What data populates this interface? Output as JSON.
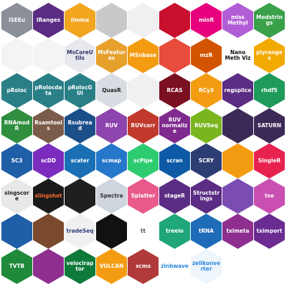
{
  "stickers": [
    {
      "label": "iSEEu",
      "bg": "#8a8f98",
      "fg": "#ffffff"
    },
    {
      "label": "IRanges",
      "bg": "#5b2c83",
      "fg": "#ffffff"
    },
    {
      "label": "limma",
      "bg": "#f2a51e",
      "fg": "#ffffff"
    },
    {
      "label": "",
      "bg": "#c9c9c9",
      "fg": "#000000"
    },
    {
      "label": "",
      "bg": "#f0f0f0",
      "fg": "#333333"
    },
    {
      "label": "",
      "bg": "#c8102e",
      "fg": "#ffffff"
    },
    {
      "label": "minfi",
      "bg": "#e6007e",
      "fg": "#ffffff"
    },
    {
      "label": "miss Methyl",
      "bg": "#b15dd6",
      "fg": "#ffffff"
    },
    {
      "label": "Modstrings",
      "bg": "#3aa14a",
      "fg": "#ffffff"
    },
    {
      "label": "",
      "bg": "#f4f4f4",
      "fg": "#555555"
    },
    {
      "label": "",
      "bg": "#f4f4f4",
      "fg": "#555555"
    },
    {
      "label": "MsCoreUtils",
      "bg": "#e8e8ef",
      "fg": "#333366"
    },
    {
      "label": "MsFeatures",
      "bg": "#e7a02c",
      "fg": "#ffffff"
    },
    {
      "label": "MSnbase",
      "bg": "#f39c12",
      "fg": "#ffffff"
    },
    {
      "label": "",
      "bg": "#e74c3c",
      "fg": "#ffffff"
    },
    {
      "label": "mzR",
      "bg": "#d35400",
      "fg": "#ffffff"
    },
    {
      "label": "Nano Meth Viz",
      "bg": "#ffffff",
      "fg": "#111111"
    },
    {
      "label": "plyranges",
      "bg": "#f2a900",
      "fg": "#ffffff"
    },
    {
      "label": "pRoloc",
      "bg": "#2a7f87",
      "fg": "#ffffff"
    },
    {
      "label": "pRolocdata",
      "bg": "#2a7f87",
      "fg": "#ffffff"
    },
    {
      "label": "pRolocGUI",
      "bg": "#2a7f87",
      "fg": "#ffffff"
    },
    {
      "label": "QuasR",
      "bg": "#d9dde3",
      "fg": "#222222"
    },
    {
      "label": "",
      "bg": "#f0f0f0",
      "fg": "#555555"
    },
    {
      "label": "RCAS",
      "bg": "#7a1020",
      "fg": "#ffffff"
    },
    {
      "label": "RCy3",
      "bg": "#f39c12",
      "fg": "#ffffff"
    },
    {
      "label": "regsplice",
      "bg": "#5b2c83",
      "fg": "#ffffff"
    },
    {
      "label": "rhdf5",
      "bg": "#1e9b5a",
      "fg": "#ffffff"
    },
    {
      "label": "RNAmodR",
      "bg": "#2f8f3f",
      "fg": "#ffffff"
    },
    {
      "label": "Rsamtools",
      "bg": "#7b5b4a",
      "fg": "#ffffff"
    },
    {
      "label": "Rsubread",
      "bg": "#1b4f8a",
      "fg": "#ffffff"
    },
    {
      "label": "RUV",
      "bg": "#8e44ad",
      "fg": "#ffffff"
    },
    {
      "label": "RUVcorr",
      "bg": "#c0392b",
      "fg": "#ffffff"
    },
    {
      "label": "RUV normalize",
      "bg": "#7f2a8f",
      "fg": "#ffffff"
    },
    {
      "label": "RUVSeq",
      "bg": "#7ab51d",
      "fg": "#ffffff"
    },
    {
      "label": "",
      "bg": "#3b2a57",
      "fg": "#ffffff"
    },
    {
      "label": "SATURN",
      "bg": "#3b2a57",
      "fg": "#ffffff"
    },
    {
      "label": "SC3",
      "bg": "#1f5fa8",
      "fg": "#ffffff"
    },
    {
      "label": "scDD",
      "bg": "#7b2cbf",
      "fg": "#ffffff"
    },
    {
      "label": "scater",
      "bg": "#1b6fb5",
      "fg": "#ffffff"
    },
    {
      "label": "scmap",
      "bg": "#2577c9",
      "fg": "#ffffff"
    },
    {
      "label": "scPipe",
      "bg": "#2ecc71",
      "fg": "#ffffff"
    },
    {
      "label": "scran",
      "bg": "#0e5aa7",
      "fg": "#ffffff"
    },
    {
      "label": "SCRY",
      "bg": "#2c3e73",
      "fg": "#ffffff"
    },
    {
      "label": "",
      "bg": "#f39c12",
      "fg": "#ffffff"
    },
    {
      "label": "SingleR",
      "bg": "#e8224f",
      "fg": "#ffffff"
    },
    {
      "label": "singscore",
      "bg": "#e8e8e8",
      "fg": "#222222"
    },
    {
      "label": "slingshot",
      "bg": "#1a1a1a",
      "fg": "#ff6b2d"
    },
    {
      "label": "",
      "bg": "#1f1f1f",
      "fg": "#ffffff"
    },
    {
      "label": "Spectra",
      "bg": "#cfd5dc",
      "fg": "#333333"
    },
    {
      "label": "Splatter",
      "bg": "#e85a8c",
      "fg": "#ffffff"
    },
    {
      "label": "stageR",
      "bg": "#5b2c83",
      "fg": "#ffffff"
    },
    {
      "label": "Structstrings",
      "bg": "#5b2c83",
      "fg": "#ffffff"
    },
    {
      "label": "",
      "bg": "#7b4db3",
      "fg": "#ffffff"
    },
    {
      "label": "tse",
      "bg": "#c94fb2",
      "fg": "#ffffff"
    },
    {
      "label": "",
      "bg": "#1f5fa8",
      "fg": "#ffffff"
    },
    {
      "label": "",
      "bg": "#7b4a2e",
      "fg": "#ffffff"
    },
    {
      "label": "tradeSeq",
      "bg": "#f0f0f0",
      "fg": "#2c3e73"
    },
    {
      "label": "",
      "bg": "#111111",
      "fg": "#ffffff"
    },
    {
      "label": "tt",
      "bg": "#ffffff",
      "fg": "#555555"
    },
    {
      "label": "treeio",
      "bg": "#1fa67a",
      "fg": "#ffffff"
    },
    {
      "label": "tRNA",
      "bg": "#1e6bb8",
      "fg": "#ffffff"
    },
    {
      "label": "tximeta",
      "bg": "#8e2f8f",
      "fg": "#ffffff"
    },
    {
      "label": "tximport",
      "bg": "#6a2c91",
      "fg": "#ffffff"
    },
    {
      "label": "TVTB",
      "bg": "#1e8a3a",
      "fg": "#ffffff"
    },
    {
      "label": "",
      "bg": "#8e2f8f",
      "fg": "#ffffff"
    },
    {
      "label": "velociraptor",
      "bg": "#0e7a3a",
      "fg": "#ffffff"
    },
    {
      "label": "VULCAN",
      "bg": "#f39c12",
      "fg": "#ffffff"
    },
    {
      "label": "xcms",
      "bg": "#b03a3a",
      "fg": "#ffffff"
    },
    {
      "label": "zinbwave",
      "bg": "#ffffff",
      "fg": "#2e86de"
    },
    {
      "label": "zellkonverter",
      "bg": "#eef5fb",
      "fg": "#2e86de"
    }
  ]
}
